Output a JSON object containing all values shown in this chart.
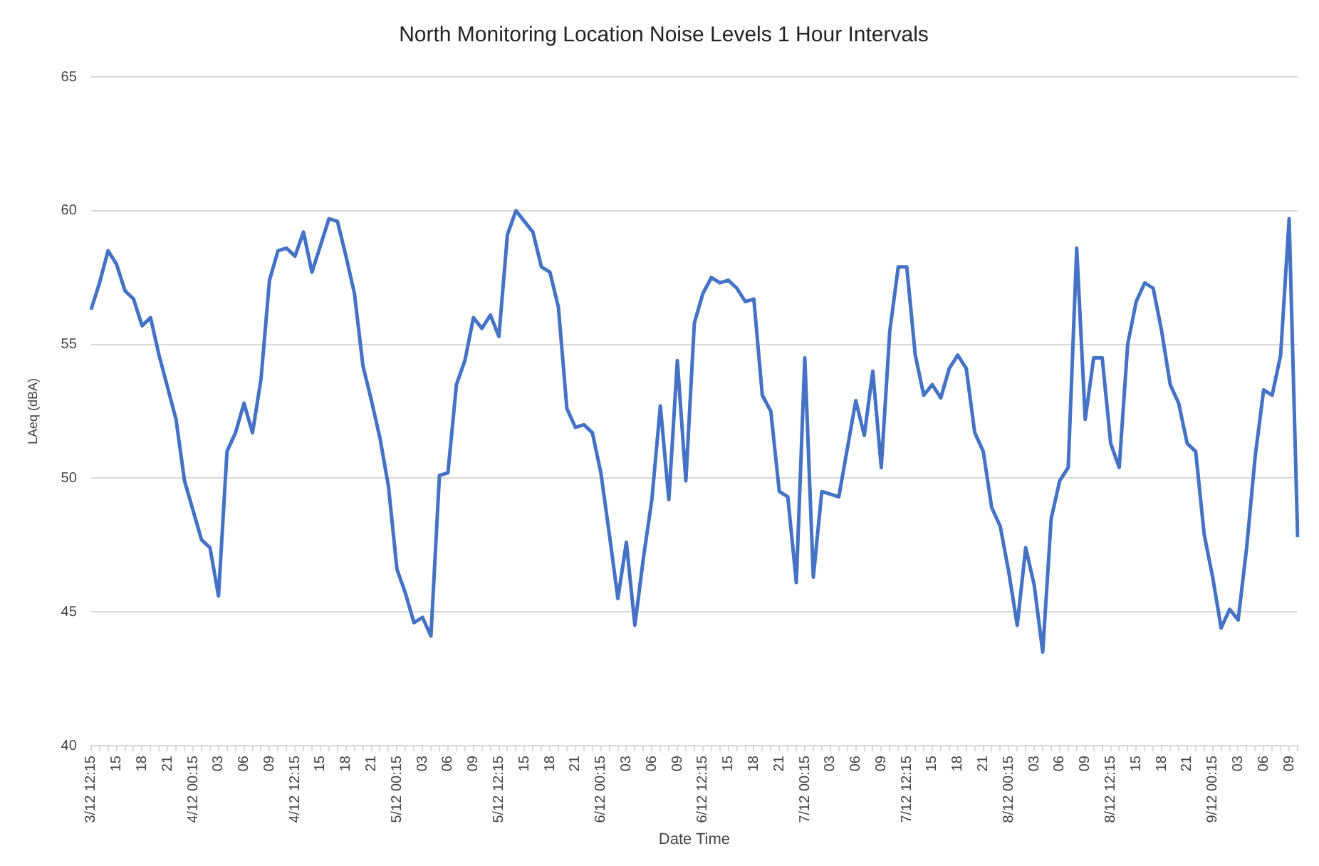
{
  "chart_data": {
    "type": "line",
    "title": "North Monitoring Location Noise Levels 1 Hour Intervals",
    "xlabel": "Date Time",
    "ylabel": "LAeq (dBA)",
    "categories": [
      "3/12 12:15",
      null,
      null,
      "15",
      null,
      null,
      "18",
      null,
      null,
      "21",
      null,
      null,
      "4/12 00:15",
      null,
      null,
      "03",
      null,
      null,
      "06",
      null,
      null,
      "09",
      null,
      null,
      "4/12 12:15",
      null,
      null,
      "15",
      null,
      null,
      "18",
      null,
      null,
      "21",
      null,
      null,
      "5/12 00:15",
      null,
      null,
      "03",
      null,
      null,
      "06",
      null,
      null,
      "09",
      null,
      null,
      "5/12 12:15",
      null,
      null,
      "15",
      null,
      null,
      "18",
      null,
      null,
      "21",
      null,
      null,
      "6/12 00:15",
      null,
      null,
      "03",
      null,
      null,
      "06",
      null,
      null,
      "09",
      null,
      null,
      "6/12 12:15",
      null,
      null,
      "15",
      null,
      null,
      "18",
      null,
      null,
      "21",
      null,
      null,
      "7/12 00:15",
      null,
      null,
      "03",
      null,
      null,
      "06",
      null,
      null,
      "09",
      null,
      null,
      "7/12 12:15",
      null,
      null,
      "15",
      null,
      null,
      "18",
      null,
      null,
      "21",
      null,
      null,
      "8/12 00:15",
      null,
      null,
      "03",
      null,
      null,
      "06",
      null,
      null,
      "09",
      null,
      null,
      "8/12 12:15",
      null,
      null,
      "15",
      null,
      null,
      "18",
      null,
      null,
      "21",
      null,
      null,
      "9/12 00:15",
      null,
      null,
      "03",
      null,
      null,
      "06",
      null,
      null,
      "09",
      null
    ],
    "series": [
      {
        "color": "#4472c4",
        "values": [
          56.3,
          57.3,
          58.5,
          58.0,
          57.0,
          56.7,
          55.7,
          56.0,
          54.6,
          53.4,
          52.2,
          49.9,
          48.8,
          47.7,
          47.4,
          45.6,
          51.0,
          51.7,
          52.8,
          51.7,
          53.7,
          57.4,
          58.5,
          58.6,
          58.3,
          59.2,
          57.7,
          58.7,
          59.7,
          59.6,
          58.3,
          56.9,
          54.2,
          52.9,
          51.5,
          49.7,
          46.6,
          45.7,
          44.6,
          44.8,
          44.1,
          50.1,
          50.2,
          53.5,
          54.4,
          56.0,
          55.6,
          56.1,
          55.3,
          59.1,
          60.0,
          59.6,
          59.2,
          57.9,
          57.7,
          56.4,
          52.6,
          51.9,
          52.0,
          51.7,
          50.2,
          47.9,
          45.5,
          47.6,
          44.5,
          47.0,
          49.2,
          52.7,
          49.2,
          54.4,
          49.9,
          55.8,
          56.9,
          57.5,
          57.3,
          57.4,
          57.1,
          56.6,
          56.7,
          53.1,
          52.5,
          49.5,
          49.3,
          46.1,
          54.5,
          46.3,
          49.5,
          49.4,
          49.3,
          51.1,
          52.9,
          51.6,
          54.0,
          50.4,
          55.5,
          57.9,
          57.9,
          54.6,
          53.1,
          53.5,
          53.0,
          54.1,
          54.6,
          54.1,
          51.7,
          51.0,
          48.9,
          48.2,
          46.5,
          44.5,
          47.4,
          46.0,
          43.5,
          48.5,
          49.9,
          50.4,
          58.6,
          52.2,
          54.5,
          54.5,
          51.3,
          50.4,
          55.0,
          56.6,
          57.3,
          57.1,
          55.5,
          53.5,
          52.8,
          51.3,
          51.0,
          47.9,
          46.3,
          44.4,
          45.1,
          44.7,
          47.4,
          50.8,
          53.3,
          53.1,
          54.6,
          59.7,
          47.8
        ]
      }
    ],
    "ylim": [
      40,
      65
    ],
    "yticks": [
      40,
      45,
      50,
      55,
      60,
      65
    ],
    "grid": "y",
    "legend": false,
    "marker": "none",
    "line_style": "solid"
  }
}
